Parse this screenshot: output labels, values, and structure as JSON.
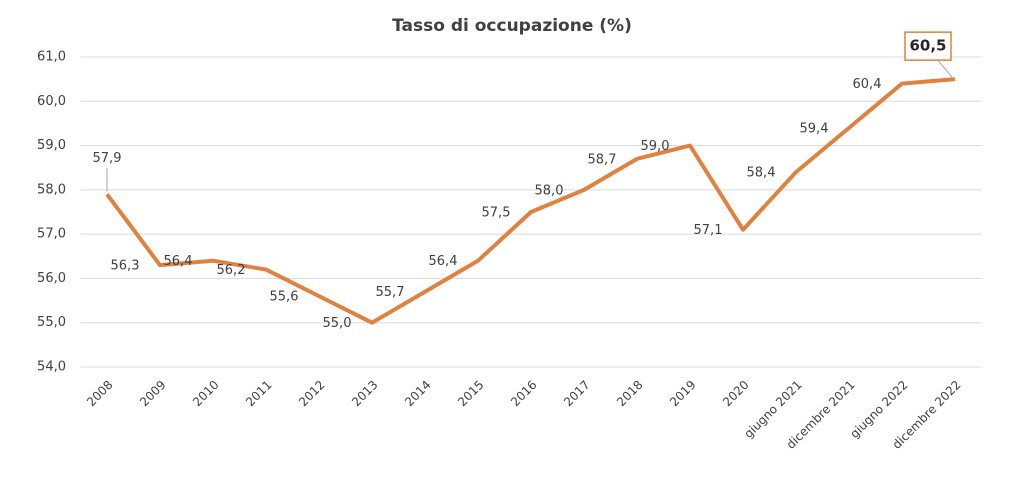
{
  "chart_data": {
    "type": "line",
    "title": "Tasso di occupazione (%)",
    "categories": [
      "2008",
      "2009",
      "2010",
      "2011",
      "2012",
      "2013",
      "2014",
      "2015",
      "2016",
      "2017",
      "2018",
      "2019",
      "2020",
      "giugno 2021",
      "dicembre 2021",
      "giugno 2022",
      "dicembre 2022"
    ],
    "values": [
      57.9,
      56.3,
      56.4,
      56.2,
      55.6,
      55.0,
      55.7,
      56.4,
      57.5,
      58.0,
      58.7,
      59.0,
      57.1,
      58.4,
      59.4,
      60.4,
      60.5
    ],
    "value_labels": [
      "57,9",
      "56,3",
      "56,4",
      "56,2",
      "55,6",
      "55,0",
      "55,7",
      "56,4",
      "57,5",
      "58,0",
      "58,7",
      "59,0",
      "57,1",
      "58,4",
      "59,4",
      "60,4",
      "60,5"
    ],
    "color": "#e0823f",
    "ylim": [
      54,
      61
    ],
    "yticks": [
      {
        "value": 54,
        "label": "54,0"
      },
      {
        "value": 55,
        "label": "55,0"
      },
      {
        "value": 56,
        "label": "56,0"
      },
      {
        "value": 57,
        "label": "57,0"
      },
      {
        "value": 58,
        "label": "58,0"
      },
      {
        "value": 59,
        "label": "59,0"
      },
      {
        "value": 60,
        "label": "60,0"
      },
      {
        "value": 61,
        "label": "61,0"
      }
    ],
    "grid": true
  }
}
